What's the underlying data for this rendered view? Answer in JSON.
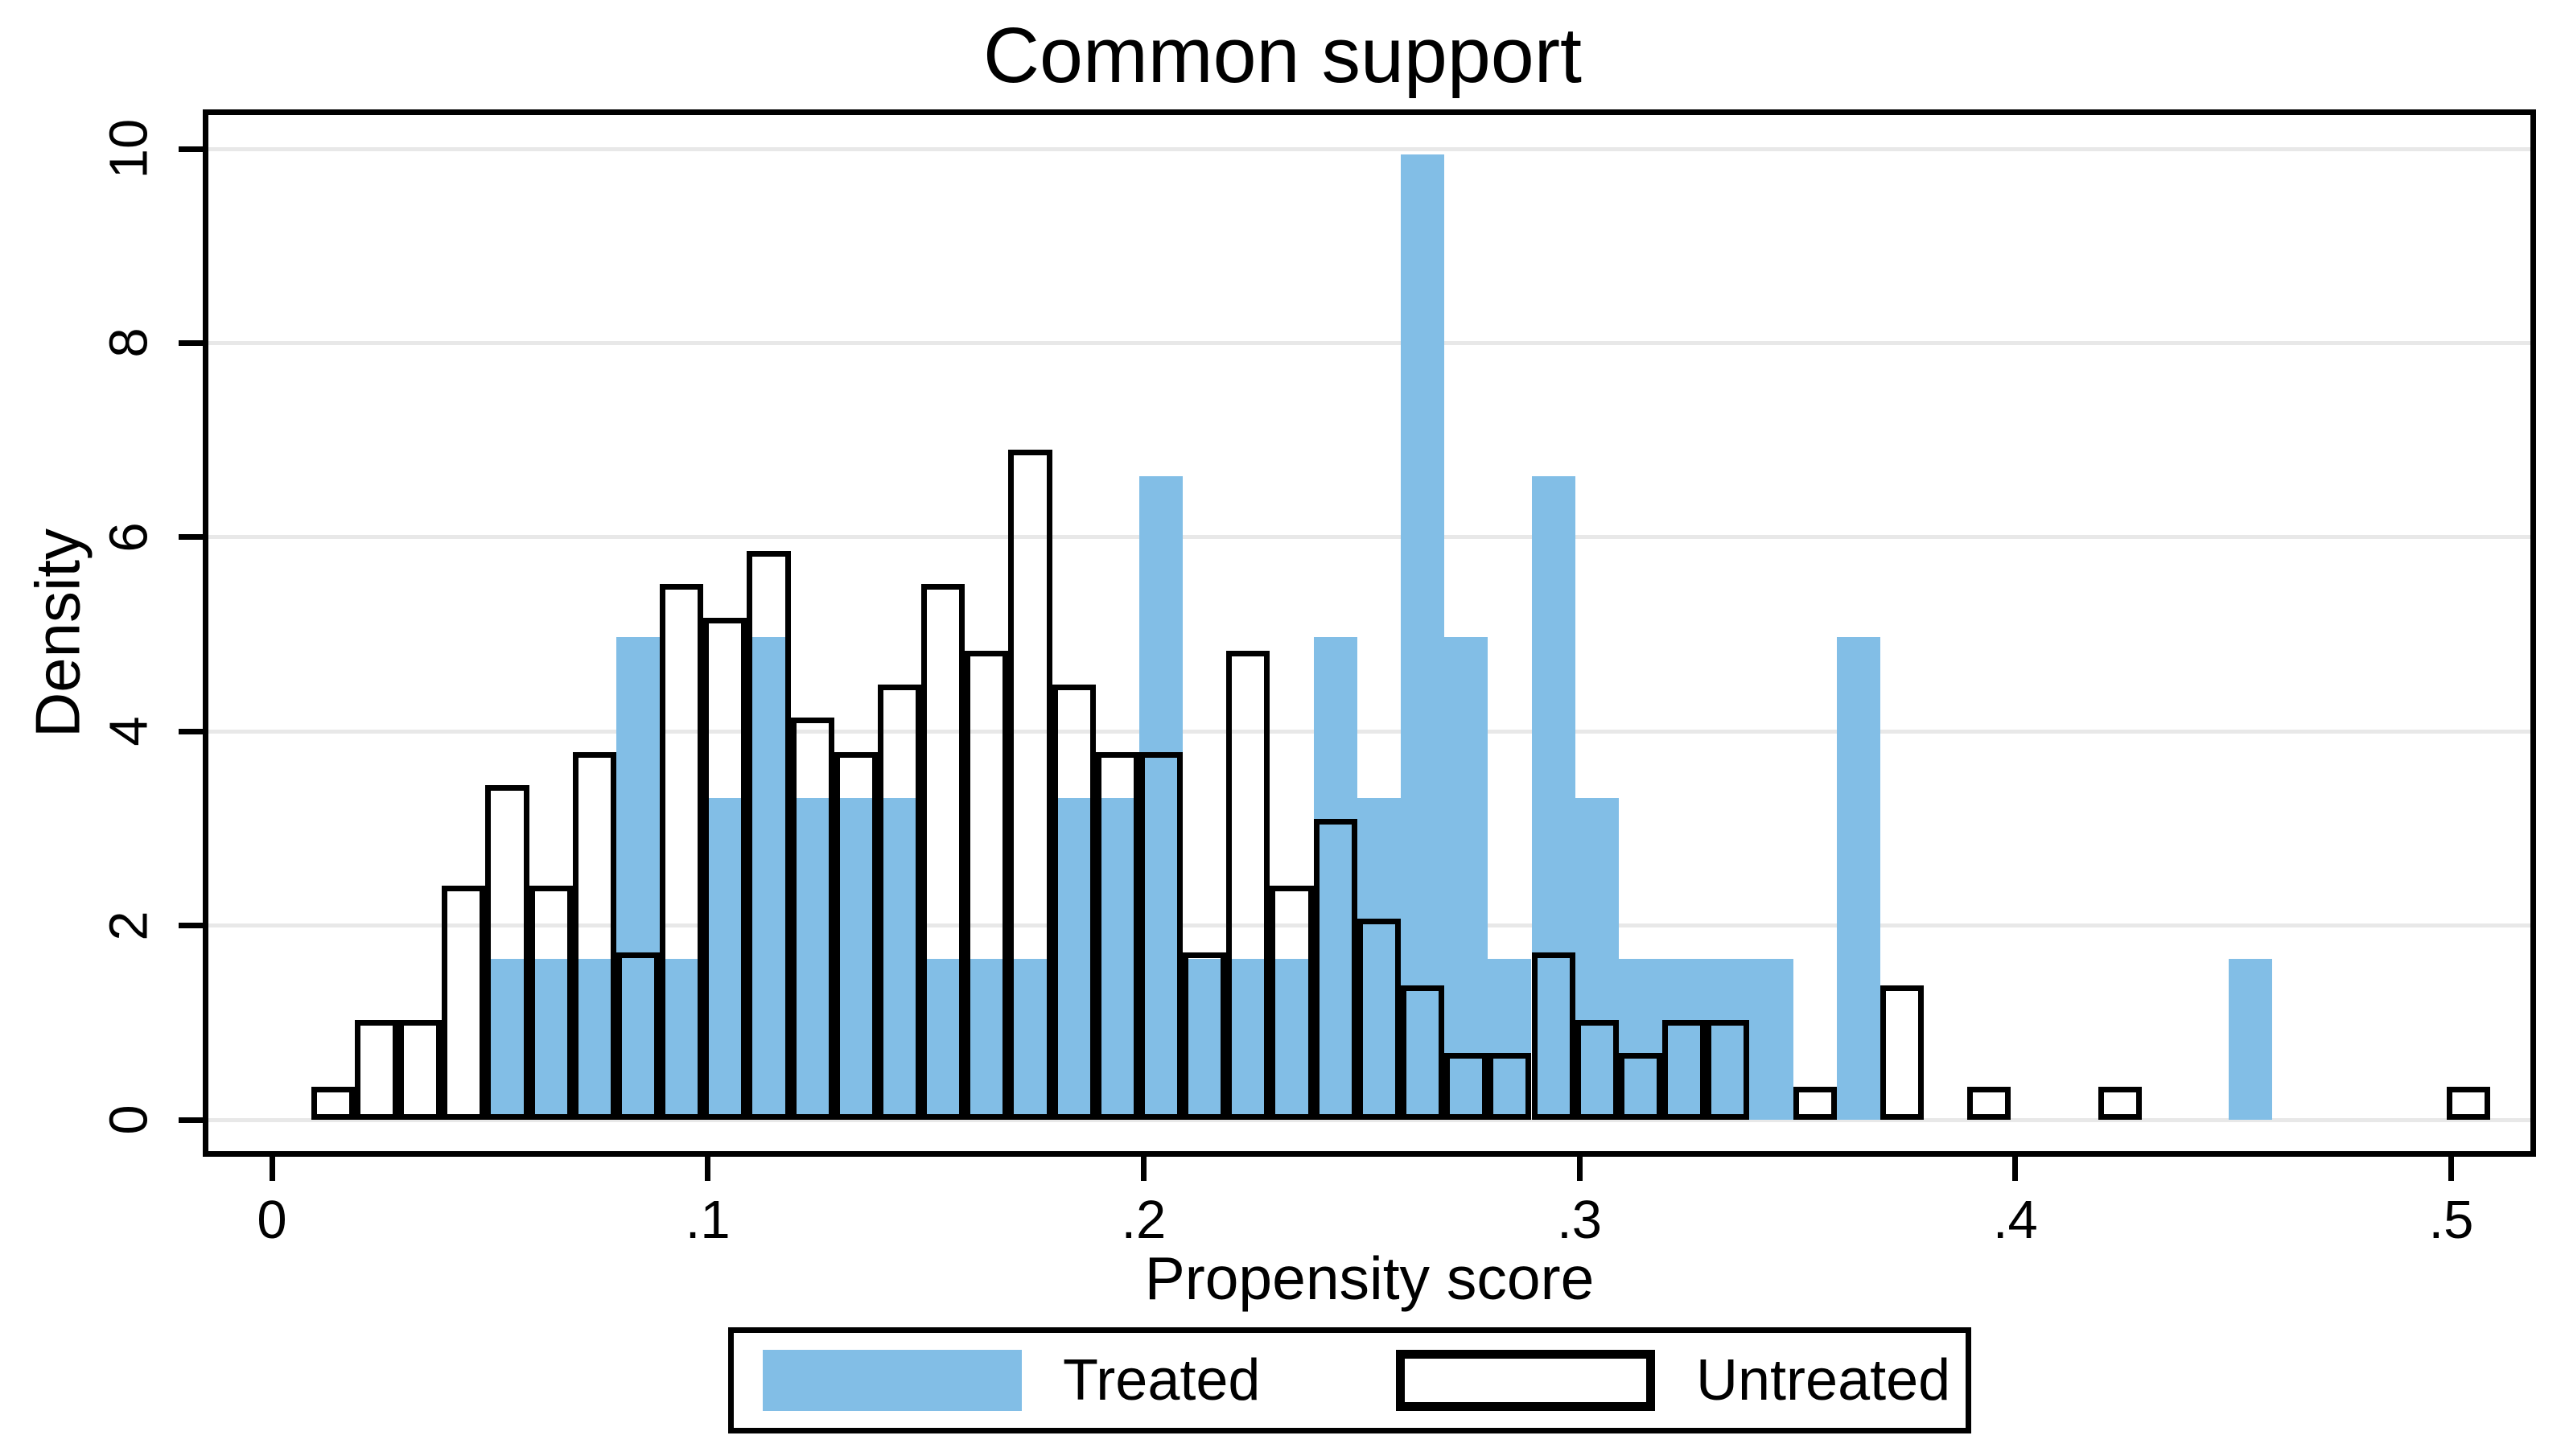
{
  "title": "Common support",
  "axes": {
    "x_label": "Propensity score",
    "y_label": "Density",
    "x_tick_labels": [
      "0",
      ".1",
      ".2",
      ".3",
      ".4",
      ".5"
    ],
    "x_tick_values": [
      0,
      0.1,
      0.2,
      0.3,
      0.4,
      0.5
    ],
    "y_tick_labels": [
      "0",
      "2",
      "4",
      "6",
      "8",
      "10"
    ],
    "y_tick_values": [
      0,
      2,
      4,
      6,
      8,
      10
    ]
  },
  "legend": {
    "treated_label": "Treated",
    "untreated_label": "Untreated"
  },
  "colors": {
    "treated_fill": "#82bee6",
    "untreated_outline": "#000000",
    "gridline": "#e8e8e8",
    "axis": "#000000"
  },
  "chart_data": {
    "type": "bar",
    "subtype": "overlaid_histogram",
    "title": "Common support",
    "xlabel": "Propensity score",
    "ylabel": "Density",
    "xlim": [
      0,
      0.52
    ],
    "ylim": [
      0,
      10
    ],
    "grid": true,
    "legend_position": "bottom",
    "bin_width": 0.01,
    "bin_left_edges": [
      0.009,
      0.019,
      0.029,
      0.039,
      0.049,
      0.059,
      0.069,
      0.079,
      0.089,
      0.099,
      0.109,
      0.119,
      0.129,
      0.139,
      0.149,
      0.159,
      0.169,
      0.179,
      0.189,
      0.199,
      0.209,
      0.219,
      0.229,
      0.239,
      0.249,
      0.259,
      0.269,
      0.279,
      0.289,
      0.299,
      0.309,
      0.319,
      0.329,
      0.339,
      0.349,
      0.359,
      0.369,
      0.379,
      0.389,
      0.399,
      0.409,
      0.419,
      0.429,
      0.439,
      0.449,
      0.459,
      0.469,
      0.479,
      0.489,
      0.499,
      0.509
    ],
    "series": [
      {
        "name": "Treated",
        "values": [
          0,
          0,
          0,
          0,
          1.66,
          1.66,
          1.66,
          4.97,
          1.66,
          3.31,
          4.97,
          3.31,
          3.31,
          3.31,
          1.66,
          1.66,
          1.66,
          3.31,
          3.31,
          6.63,
          1.66,
          1.66,
          1.66,
          4.97,
          3.31,
          9.94,
          4.97,
          1.66,
          6.63,
          3.31,
          1.66,
          1.66,
          1.66,
          1.66,
          0,
          4.97,
          0,
          0,
          0,
          0,
          0,
          0,
          0,
          0,
          1.66,
          0,
          0,
          0,
          0,
          0,
          0
        ]
      },
      {
        "name": "Untreated",
        "values": [
          0.34,
          1.03,
          1.03,
          2.41,
          3.45,
          2.41,
          3.79,
          1.72,
          5.52,
          5.17,
          5.86,
          4.14,
          3.79,
          4.48,
          5.52,
          4.83,
          6.9,
          4.48,
          3.79,
          3.79,
          1.72,
          4.83,
          2.41,
          3.1,
          2.07,
          1.38,
          0.69,
          0.69,
          1.72,
          1.03,
          0.69,
          1.03,
          1.03,
          0,
          0.34,
          0,
          1.38,
          0,
          0.34,
          0,
          0,
          0.34,
          0,
          0,
          0,
          0,
          0,
          0,
          0,
          0.34,
          0
        ]
      }
    ]
  }
}
